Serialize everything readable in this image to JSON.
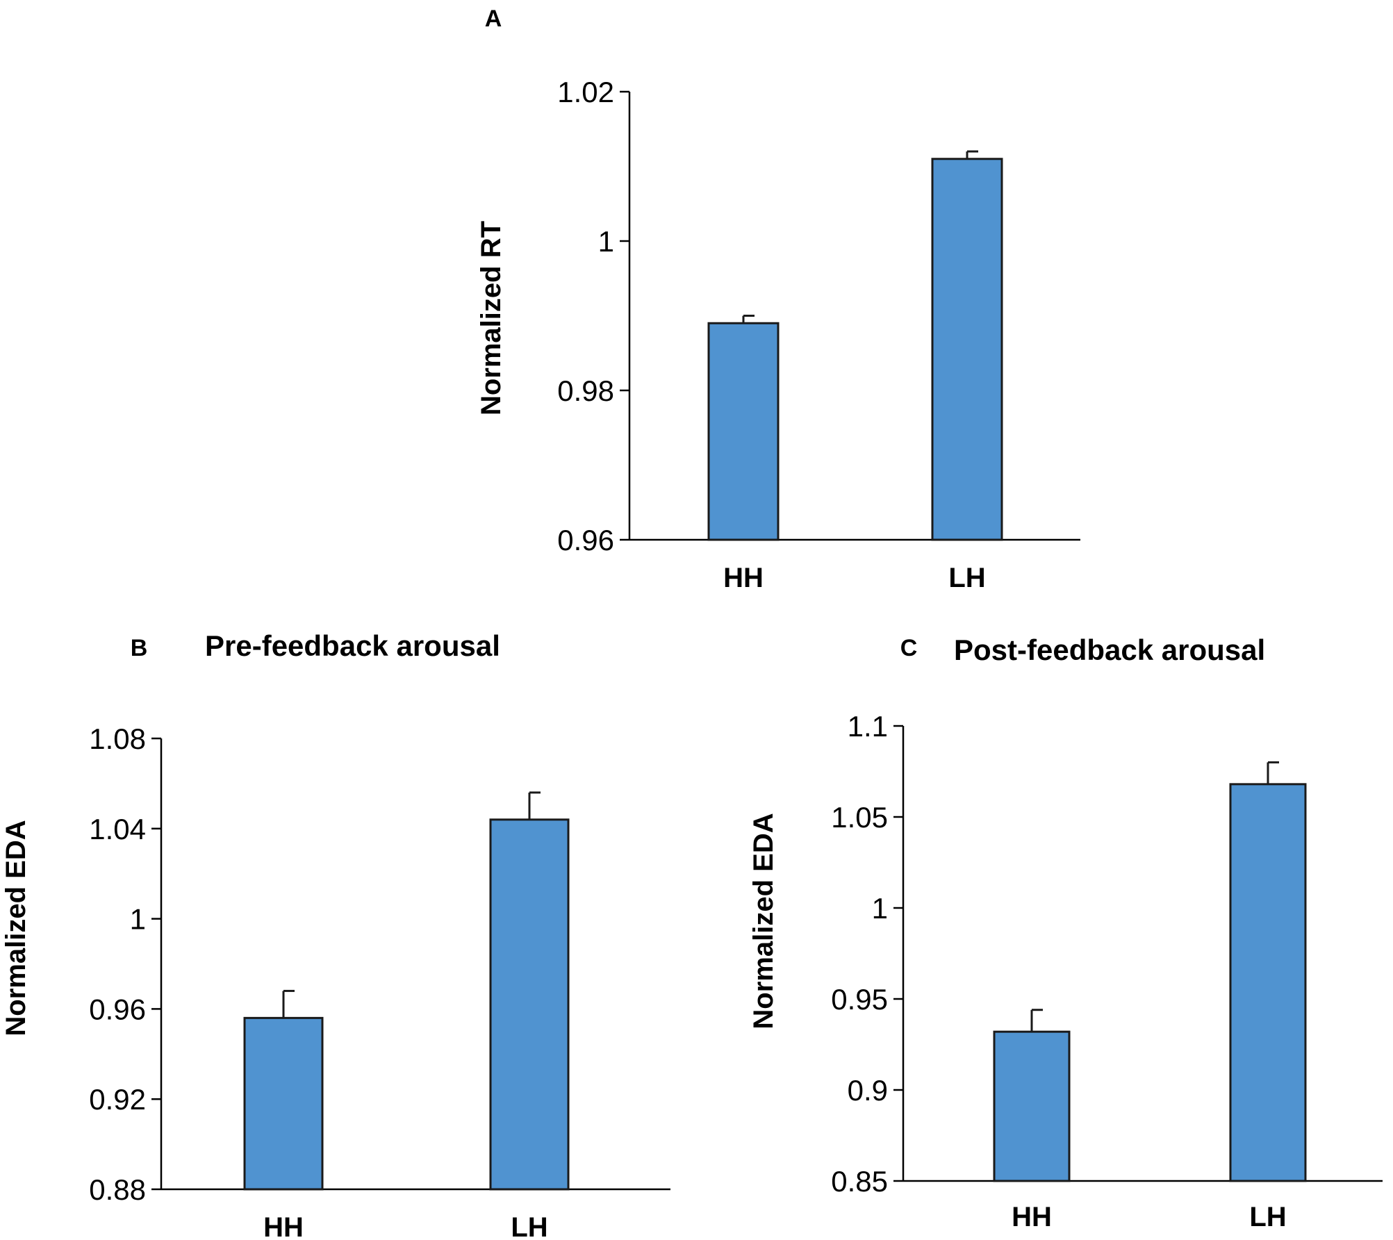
{
  "colors": {
    "bar": "#5093D0",
    "outline": "#1a1a1a",
    "axis": "#000000"
  },
  "chart_data": [
    {
      "panel": "A",
      "type": "bar",
      "title": "",
      "xlabel": "",
      "ylabel": "Normalized RT",
      "categories": [
        "HH",
        "LH"
      ],
      "values": [
        0.989,
        1.011
      ],
      "error": [
        0.001,
        0.001
      ],
      "ylim": [
        0.96,
        1.02
      ],
      "yticks": [
        0.96,
        0.98,
        1.0,
        1.02
      ],
      "ytick_labels": [
        "0.96",
        "0.98",
        "1",
        "1.02"
      ],
      "grid": false,
      "legend": "none"
    },
    {
      "panel": "B",
      "type": "bar",
      "title": "Pre-feedback arousal",
      "xlabel": "",
      "ylabel": "Normalized EDA",
      "categories": [
        "HH",
        "LH"
      ],
      "values": [
        0.956,
        1.044
      ],
      "error": [
        0.012,
        0.012
      ],
      "ylim": [
        0.88,
        1.08
      ],
      "yticks": [
        0.88,
        0.92,
        0.96,
        1.0,
        1.04,
        1.08
      ],
      "ytick_labels": [
        "0.88",
        "0.92",
        "0.96",
        "1",
        "1.04",
        "1.08"
      ],
      "grid": false,
      "legend": "none"
    },
    {
      "panel": "C",
      "type": "bar",
      "title": "Post-feedback arousal",
      "xlabel": "",
      "ylabel": "Normalized EDA",
      "categories": [
        "HH",
        "LH"
      ],
      "values": [
        0.932,
        1.068
      ],
      "error": [
        0.012,
        0.012
      ],
      "ylim": [
        0.85,
        1.1
      ],
      "yticks": [
        0.85,
        0.9,
        0.95,
        1.0,
        1.05,
        1.1
      ],
      "ytick_labels": [
        "0.85",
        "0.9",
        "0.95",
        "1",
        "1.05",
        "1.1"
      ],
      "grid": false,
      "legend": "none"
    }
  ]
}
